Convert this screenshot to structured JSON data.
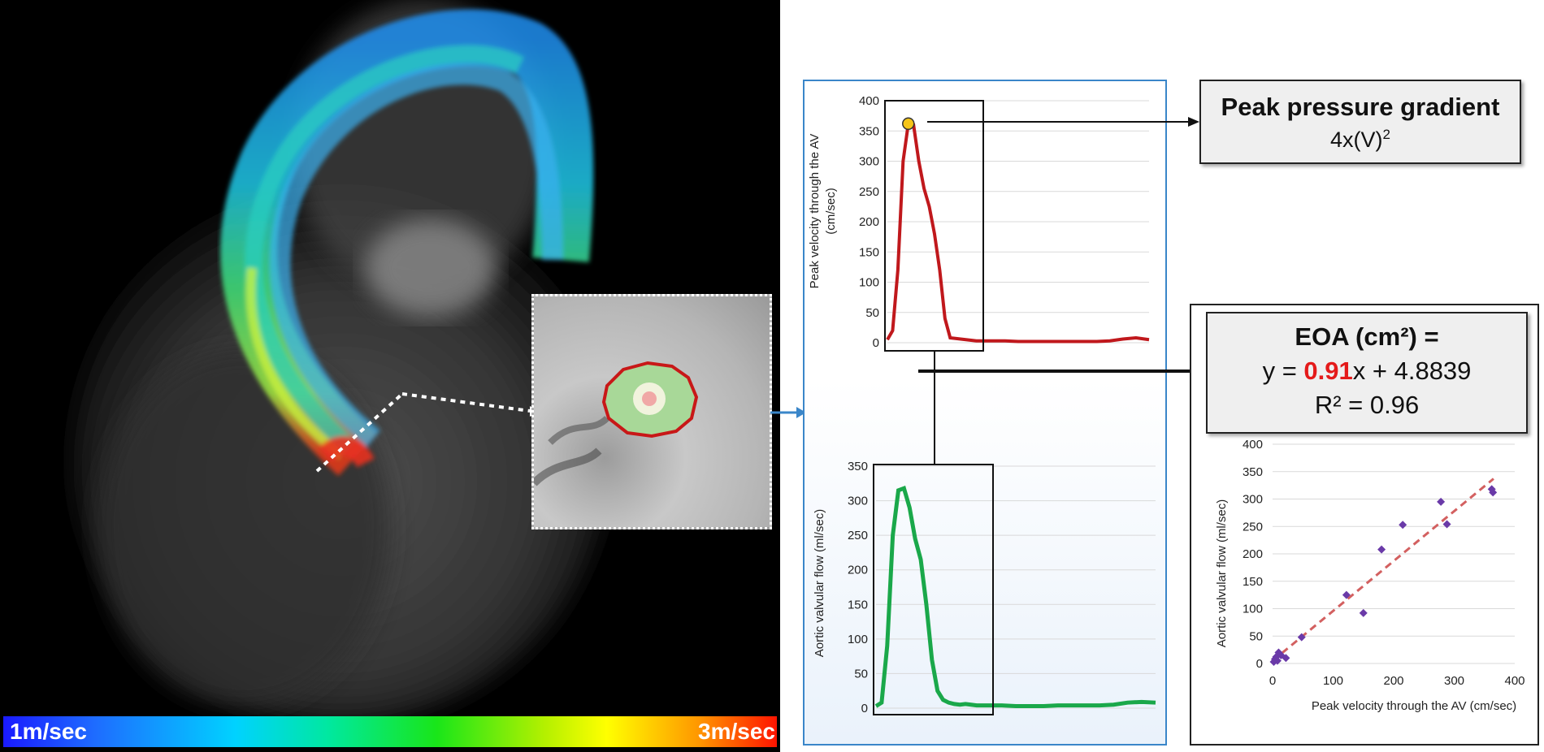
{
  "colorbar": {
    "min_label": "1m/sec",
    "max_label": "3m/sec"
  },
  "velocity_chart": {
    "type": "line",
    "ylabel_line1": "Peak  velocity through the AV",
    "ylabel_line2": "(cm/sec)",
    "yticks": [
      "0",
      "50",
      "100",
      "150",
      "200",
      "250",
      "300",
      "350",
      "400"
    ],
    "ylim": [
      0,
      400
    ],
    "color": "#c0181c",
    "peak_marker_color": "#f5c518",
    "chart_data": {
      "type": "line",
      "x": [
        0,
        2,
        4,
        6,
        8,
        10,
        12,
        14,
        16,
        18,
        20,
        22,
        24,
        26,
        28,
        30,
        32,
        34,
        36,
        38,
        40,
        45,
        50,
        55,
        60,
        65,
        70,
        75,
        80,
        85,
        90,
        95,
        100
      ],
      "values": [
        5,
        20,
        120,
        300,
        362,
        360,
        300,
        255,
        225,
        180,
        120,
        40,
        8,
        7,
        6,
        5,
        4,
        3,
        3,
        3,
        3,
        3,
        2,
        2,
        2,
        2,
        2,
        2,
        2,
        3,
        6,
        8,
        5
      ],
      "ylim": [
        0,
        400
      ]
    }
  },
  "flow_chart": {
    "type": "line",
    "ylabel": "Aortic valvular flow (ml/sec)",
    "yticks": [
      "0",
      "50",
      "100",
      "150",
      "200",
      "250",
      "300",
      "350"
    ],
    "ylim": [
      0,
      350
    ],
    "color": "#1aa84a",
    "chart_data": {
      "type": "line",
      "x": [
        0,
        2,
        4,
        6,
        8,
        10,
        12,
        14,
        16,
        18,
        20,
        22,
        24,
        26,
        28,
        30,
        32,
        34,
        36,
        38,
        40,
        45,
        50,
        55,
        60,
        65,
        70,
        75,
        80,
        85,
        90,
        95,
        100
      ],
      "values": [
        3,
        8,
        90,
        250,
        315,
        318,
        290,
        245,
        215,
        150,
        70,
        25,
        12,
        8,
        6,
        5,
        6,
        5,
        4,
        4,
        4,
        4,
        3,
        3,
        3,
        4,
        4,
        4,
        4,
        5,
        8,
        9,
        8
      ],
      "ylim": [
        0,
        350
      ]
    }
  },
  "ppg_box": {
    "title": "Peak pressure gradient",
    "formula_base": "4x(V)",
    "formula_sup": "2"
  },
  "eoa_box": {
    "title": "EOA (cm²) =",
    "eq_prefix": "y = ",
    "slope": "0.91",
    "eq_suffix": "x + 4.8839",
    "r2": "R² = 0.96"
  },
  "scatter_chart": {
    "chart_data": {
      "type": "scatter",
      "xlabel": "Peak  velocity through the AV  (cm/sec)",
      "ylabel": "Aortic valvular flow (ml/sec)",
      "xlim": [
        0,
        400
      ],
      "ylim": [
        0,
        400
      ],
      "xticks": [
        "0",
        "100",
        "200",
        "300",
        "400"
      ],
      "yticks": [
        "0",
        "50",
        "100",
        "150",
        "200",
        "250",
        "300",
        "350",
        "400"
      ],
      "points": [
        [
          2,
          3
        ],
        [
          4,
          8
        ],
        [
          6,
          12
        ],
        [
          8,
          5
        ],
        [
          10,
          20
        ],
        [
          14,
          15
        ],
        [
          22,
          10
        ],
        [
          48,
          48
        ],
        [
          122,
          125
        ],
        [
          150,
          92
        ],
        [
          180,
          208
        ],
        [
          215,
          253
        ],
        [
          278,
          295
        ],
        [
          288,
          254
        ],
        [
          362,
          318
        ],
        [
          364,
          312
        ]
      ],
      "trend_slope": 0.91,
      "trend_intercept": 4.8839,
      "point_color": "#6a3aa8",
      "trend_color": "#d36060"
    }
  }
}
